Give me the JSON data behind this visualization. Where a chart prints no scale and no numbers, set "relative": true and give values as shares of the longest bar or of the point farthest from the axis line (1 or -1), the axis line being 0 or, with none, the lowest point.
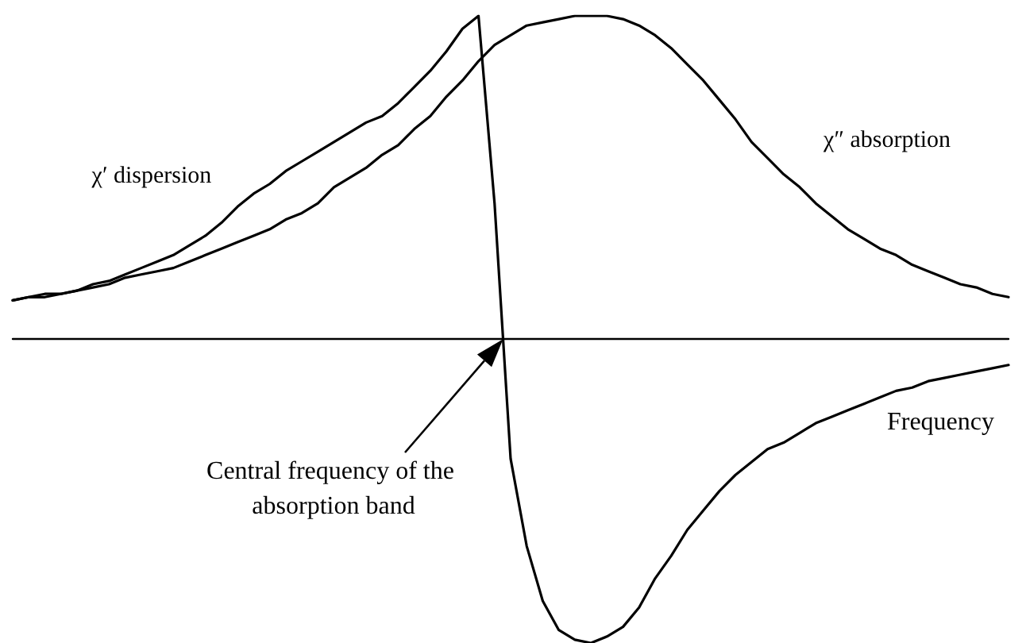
{
  "chart_data": {
    "type": "line",
    "relative": true,
    "xlabel": "Frequency",
    "annotations": [
      "Central frequency of the absorption band"
    ],
    "marker": "none",
    "line_style": "solid",
    "grid": false,
    "legend": false,
    "tick_labels": false,
    "categories": [
      null,
      null,
      null,
      null,
      null,
      null,
      null,
      null,
      null,
      null,
      null,
      null,
      null,
      null,
      null,
      null,
      null,
      null,
      null,
      null,
      null,
      null,
      null,
      null,
      null,
      null,
      null,
      null,
      null,
      null,
      null,
      null,
      null,
      null,
      null,
      null,
      null,
      null,
      null,
      null,
      null,
      null,
      null,
      null,
      null,
      null,
      null,
      null,
      null,
      null,
      null,
      null,
      null,
      null,
      null,
      null,
      null,
      null,
      null,
      null,
      null,
      null,
      null
    ],
    "series": [
      {
        "name": "χ′ dispersion",
        "color": "#000000",
        "values": [
          0.12,
          0.13,
          0.14,
          0.14,
          0.15,
          0.17,
          0.18,
          0.2,
          0.22,
          0.24,
          0.26,
          0.29,
          0.32,
          0.36,
          0.41,
          0.45,
          0.48,
          0.52,
          0.55,
          0.58,
          0.61,
          0.64,
          0.67,
          0.69,
          0.73,
          0.78,
          0.83,
          0.89,
          0.96,
          1.0,
          0.42,
          -0.37,
          -0.64,
          -0.81,
          -0.9,
          -0.93,
          -0.94,
          -0.92,
          -0.89,
          -0.83,
          -0.74,
          -0.67,
          -0.59,
          -0.53,
          -0.47,
          -0.42,
          -0.38,
          -0.34,
          -0.32,
          -0.29,
          -0.26,
          -0.24,
          -0.22,
          -0.2,
          -0.18,
          -0.16,
          -0.15,
          -0.13,
          -0.12,
          -0.11,
          -0.1,
          -0.09,
          -0.08
        ]
      },
      {
        "name": "χ″ absorption",
        "color": "#000000",
        "values": [
          0.12,
          0.13,
          0.13,
          0.14,
          0.15,
          0.16,
          0.17,
          0.19,
          0.2,
          0.21,
          0.22,
          0.24,
          0.26,
          0.28,
          0.3,
          0.32,
          0.34,
          0.37,
          0.39,
          0.42,
          0.47,
          0.5,
          0.53,
          0.57,
          0.6,
          0.65,
          0.69,
          0.75,
          0.8,
          0.86,
          0.91,
          0.94,
          0.97,
          0.98,
          0.99,
          1.0,
          1.0,
          1.0,
          0.99,
          0.97,
          0.94,
          0.9,
          0.85,
          0.8,
          0.74,
          0.68,
          0.61,
          0.56,
          0.51,
          0.47,
          0.42,
          0.38,
          0.34,
          0.31,
          0.28,
          0.26,
          0.23,
          0.21,
          0.19,
          0.17,
          0.16,
          0.14,
          0.13
        ]
      }
    ]
  }
}
